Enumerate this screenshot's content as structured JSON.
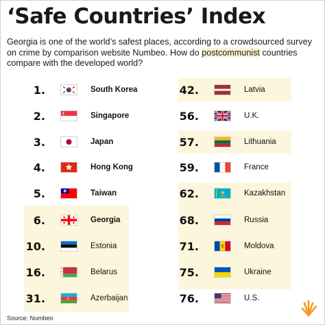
{
  "title": "‘Safe Countries’ Index",
  "subtitle_pre": "Georgia is one of the world’s safest places, according to a crowdsourced survey on crime by comparison website Numbeo. How do ",
  "subtitle_hl": "postcommunist",
  "subtitle_post": " countries compare with the developed world?",
  "left_list": [
    {
      "rank": "1.",
      "country": "South Korea",
      "flag": "south-korea-flag",
      "highlight": false
    },
    {
      "rank": "2.",
      "country": "Singapore",
      "flag": "singapore-flag",
      "highlight": false
    },
    {
      "rank": "3.",
      "country": "Japan",
      "flag": "japan-flag",
      "highlight": false
    },
    {
      "rank": "4.",
      "country": "Hong Kong",
      "flag": "hong-kong-flag",
      "highlight": false
    },
    {
      "rank": "5.",
      "country": "Taiwan",
      "flag": "taiwan-flag",
      "highlight": false
    },
    {
      "rank": "6.",
      "country": "Georgia",
      "flag": "georgia-flag",
      "highlight": true
    },
    {
      "rank": "10.",
      "country": "Estonia",
      "flag": "estonia-flag",
      "highlight": true
    },
    {
      "rank": "16.",
      "country": "Belarus",
      "flag": "belarus-flag",
      "highlight": true
    },
    {
      "rank": "31.",
      "country": "Azerbaijan",
      "flag": "azerbaijan-flag",
      "highlight": true
    }
  ],
  "right_list": [
    {
      "rank": "42.",
      "country": "Latvia",
      "flag": "latvia-flag",
      "highlight": true
    },
    {
      "rank": "56.",
      "country": "U.K.",
      "flag": "uk-flag",
      "highlight": false
    },
    {
      "rank": "57.",
      "country": "Lithuania",
      "flag": "lithuania-flag",
      "highlight": true
    },
    {
      "rank": "59.",
      "country": "France",
      "flag": "france-flag",
      "highlight": false
    },
    {
      "rank": "62.",
      "country": "Kazakhstan",
      "flag": "kazakhstan-flag",
      "highlight": true
    },
    {
      "rank": "68.",
      "country": "Russia",
      "flag": "russia-flag",
      "highlight": true
    },
    {
      "rank": "71.",
      "country": "Moldova",
      "flag": "moldova-flag",
      "highlight": true
    },
    {
      "rank": "75.",
      "country": "Ukraine",
      "flag": "ukraine-flag",
      "highlight": true
    },
    {
      "rank": "76.",
      "country": "U.S.",
      "flag": "us-flag",
      "highlight": false
    }
  ],
  "source": "Source: Numbeo",
  "colors": {
    "highlight": "#fcf6dc",
    "accent": "#f39a23"
  }
}
